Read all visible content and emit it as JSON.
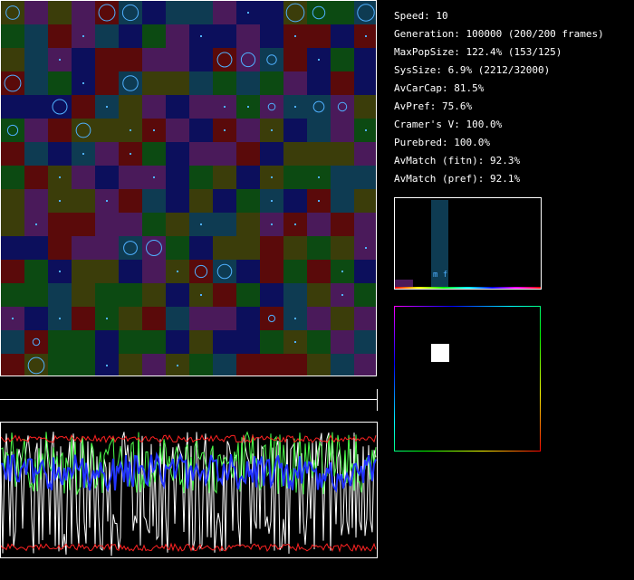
{
  "stats": {
    "speed": "Speed: 10",
    "generation": "Generation: 100000 (200/200 frames)",
    "max_pop_size": "MaxPopSize: 122.4% (153/125)",
    "sys_size": "SysSize: 6.9% (2212/32000)",
    "av_car_cap": "AvCarCap: 81.5%",
    "av_pref": "AvPref: 75.6%",
    "cramers_v": "Cramer's V: 100.0%",
    "purebred": "Purebred: 100.0%",
    "av_match_fitn": "AvMatch (fitn): 92.3%",
    "av_match_pref": "AvMatch (pref): 92.1%"
  },
  "preference_panel": {
    "label": "m f"
  },
  "colors": {
    "cell_palette": [
      "#3b3d0a",
      "#0c4a12",
      "#0c0f5c",
      "#4a1a5a",
      "#5a0a0a",
      "#0e3b52"
    ],
    "organism": "#4fb0ff",
    "history_white": "#ffffff",
    "history_green": "#4cff4c",
    "history_blue": "#2233ff",
    "history_red": "#ff2222"
  }
}
